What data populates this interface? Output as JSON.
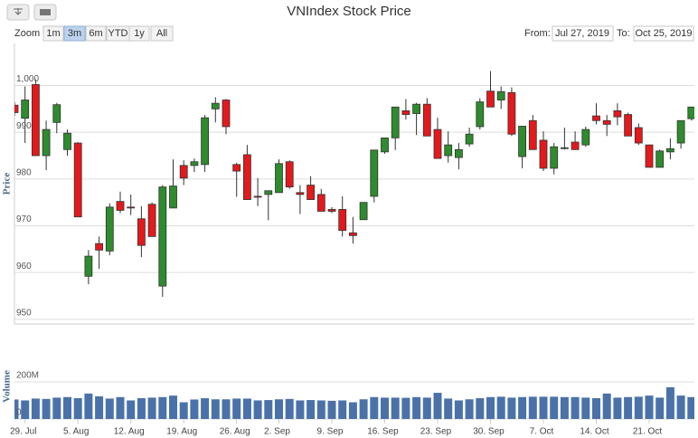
{
  "chart_data": {
    "type": "candlestick",
    "title": "VNIndex Stock Price",
    "zoom_label": "Zoom",
    "zoom_buttons": [
      "1m",
      "3m",
      "6m",
      "YTD",
      "1y",
      "All"
    ],
    "zoom_selected": "3m",
    "from_label": "From:",
    "from_date": "Jul 27, 2019",
    "to_label": "To:",
    "to_date": "Oct 25, 2019",
    "ylabel": "Price",
    "volume_label": "Volume",
    "categories": [
      null,
      "29. Jul",
      null,
      null,
      null,
      null,
      "5. Aug",
      null,
      null,
      null,
      null,
      "12. Aug",
      null,
      null,
      null,
      null,
      "19. Aug",
      null,
      null,
      null,
      null,
      "26. Aug",
      null,
      null,
      null,
      "2. Sep",
      null,
      null,
      null,
      null,
      "9. Sep",
      null,
      null,
      null,
      null,
      "16. Sep",
      null,
      null,
      null,
      null,
      "23. Sep",
      null,
      null,
      null,
      null,
      "30. Sep",
      null,
      null,
      null,
      null,
      "7. Oct",
      null,
      null,
      null,
      null,
      "14. Oct",
      null,
      null,
      null,
      null,
      "21. Oct",
      null,
      null,
      null,
      null
    ],
    "open": [
      995.8,
      993.0,
      1000.2,
      985.0,
      992.1,
      986.3,
      987.7,
      959.2,
      966.2,
      964.6,
      975.2,
      974.0,
      971.5,
      974.6,
      957.1,
      973.8,
      982.9,
      982.9,
      983.1,
      995.0,
      996.9,
      983.1,
      985.2,
      976.3,
      976.7,
      977.1,
      983.7,
      977.1,
      978.7,
      976.7,
      973.5,
      973.5,
      968.5,
      971.3,
      976.3,
      985.8,
      988.8,
      994.6,
      994.0,
      996.0,
      990.6,
      985.0,
      984.6,
      987.5,
      991.2,
      998.8,
      996.9,
      998.5,
      984.8,
      992.5,
      988.3,
      982.3,
      986.7,
      987.9,
      987.3,
      993.5,
      992.5,
      994.6,
      993.8,
      991.0,
      987.3,
      982.5,
      985.8,
      987.7,
      992.9
    ],
    "high": [
      996.5,
      999.8,
      1001.3,
      992.5,
      996.3,
      990.6,
      987.9,
      964.8,
      967.7,
      974.8,
      977.3,
      976.7,
      974.2,
      975.0,
      978.7,
      984.2,
      984.0,
      984.4,
      993.7,
      997.5,
      997.1,
      983.5,
      987.3,
      980.2,
      977.5,
      984.2,
      984.0,
      978.7,
      980.6,
      977.9,
      974.0,
      976.3,
      971.9,
      975.0,
      986.2,
      988.8,
      995.4,
      997.1,
      996.3,
      997.3,
      993.1,
      990.2,
      987.7,
      991.0,
      997.3,
      1003.1,
      999.8,
      999.6,
      991.3,
      993.7,
      990.2,
      987.7,
      991.0,
      990.2,
      991.2,
      996.2,
      993.7,
      996.2,
      994.2,
      991.9,
      987.3,
      986.3,
      988.7,
      992.5,
      995.4
    ],
    "low": [
      993.5,
      987.7,
      985.0,
      981.9,
      989.8,
      985.0,
      971.9,
      957.5,
      960.8,
      963.7,
      972.7,
      972.3,
      963.3,
      967.7,
      954.8,
      973.8,
      978.7,
      981.5,
      981.5,
      992.1,
      989.6,
      976.2,
      975.6,
      974.2,
      971.2,
      977.1,
      977.9,
      972.5,
      975.6,
      973.1,
      972.7,
      967.7,
      966.2,
      971.3,
      975.0,
      985.4,
      986.2,
      992.7,
      989.4,
      989.2,
      984.4,
      983.5,
      982.1,
      986.9,
      990.6,
      995.4,
      995.0,
      989.2,
      982.3,
      986.3,
      981.7,
      981.0,
      986.3,
      986.2,
      986.9,
      991.7,
      989.2,
      991.5,
      989.2,
      987.3,
      982.5,
      982.5,
      984.2,
      986.5,
      992.5
    ],
    "close": [
      994.2,
      996.9,
      985.0,
      990.6,
      995.9,
      989.8,
      971.9,
      963.5,
      964.8,
      974.0,
      973.3,
      973.8,
      965.8,
      967.7,
      978.3,
      978.5,
      980.2,
      983.7,
      993.1,
      996.2,
      991.2,
      981.7,
      975.6,
      976.2,
      977.5,
      983.3,
      978.3,
      976.7,
      975.6,
      973.1,
      973.1,
      969.0,
      967.9,
      975.0,
      986.2,
      988.8,
      995.4,
      993.8,
      996.0,
      989.2,
      984.4,
      987.3,
      986.3,
      989.6,
      996.5,
      995.4,
      998.7,
      989.6,
      991.3,
      986.3,
      982.3,
      986.9,
      986.7,
      986.3,
      990.6,
      992.5,
      991.7,
      993.3,
      989.2,
      987.7,
      982.5,
      986.0,
      986.5,
      992.5,
      995.4
    ],
    "volume": [
      105000000,
      100000000,
      110000000,
      108000000,
      115000000,
      118000000,
      112000000,
      137000000,
      122000000,
      110000000,
      118000000,
      100000000,
      112000000,
      115000000,
      118000000,
      126000000,
      90000000,
      105000000,
      112000000,
      106000000,
      106000000,
      110000000,
      110000000,
      100000000,
      102000000,
      106000000,
      108000000,
      100000000,
      102000000,
      100000000,
      98000000,
      100000000,
      90000000,
      106000000,
      118000000,
      115000000,
      115000000,
      114000000,
      118000000,
      115000000,
      141000000,
      110000000,
      100000000,
      106000000,
      112000000,
      118000000,
      120000000,
      115000000,
      118000000,
      120000000,
      120000000,
      120000000,
      118000000,
      118000000,
      115000000,
      112000000,
      137000000,
      115000000,
      118000000,
      120000000,
      126000000,
      115000000,
      171000000,
      126000000,
      118000000
    ],
    "up_color": "#2e8b2e",
    "down_color": "#e3191c",
    "volume_color": "#4b72a8",
    "ylim": [
      949,
      1009
    ],
    "yticks": [
      950,
      960,
      970,
      980,
      990,
      {
        "value": 1000,
        "label": "1,000"
      }
    ],
    "volume_ylim": [
      0,
      380000000
    ],
    "volume_yticks": [
      0,
      {
        "value": 200000000,
        "label": "200M"
      }
    ],
    "grid": true
  }
}
